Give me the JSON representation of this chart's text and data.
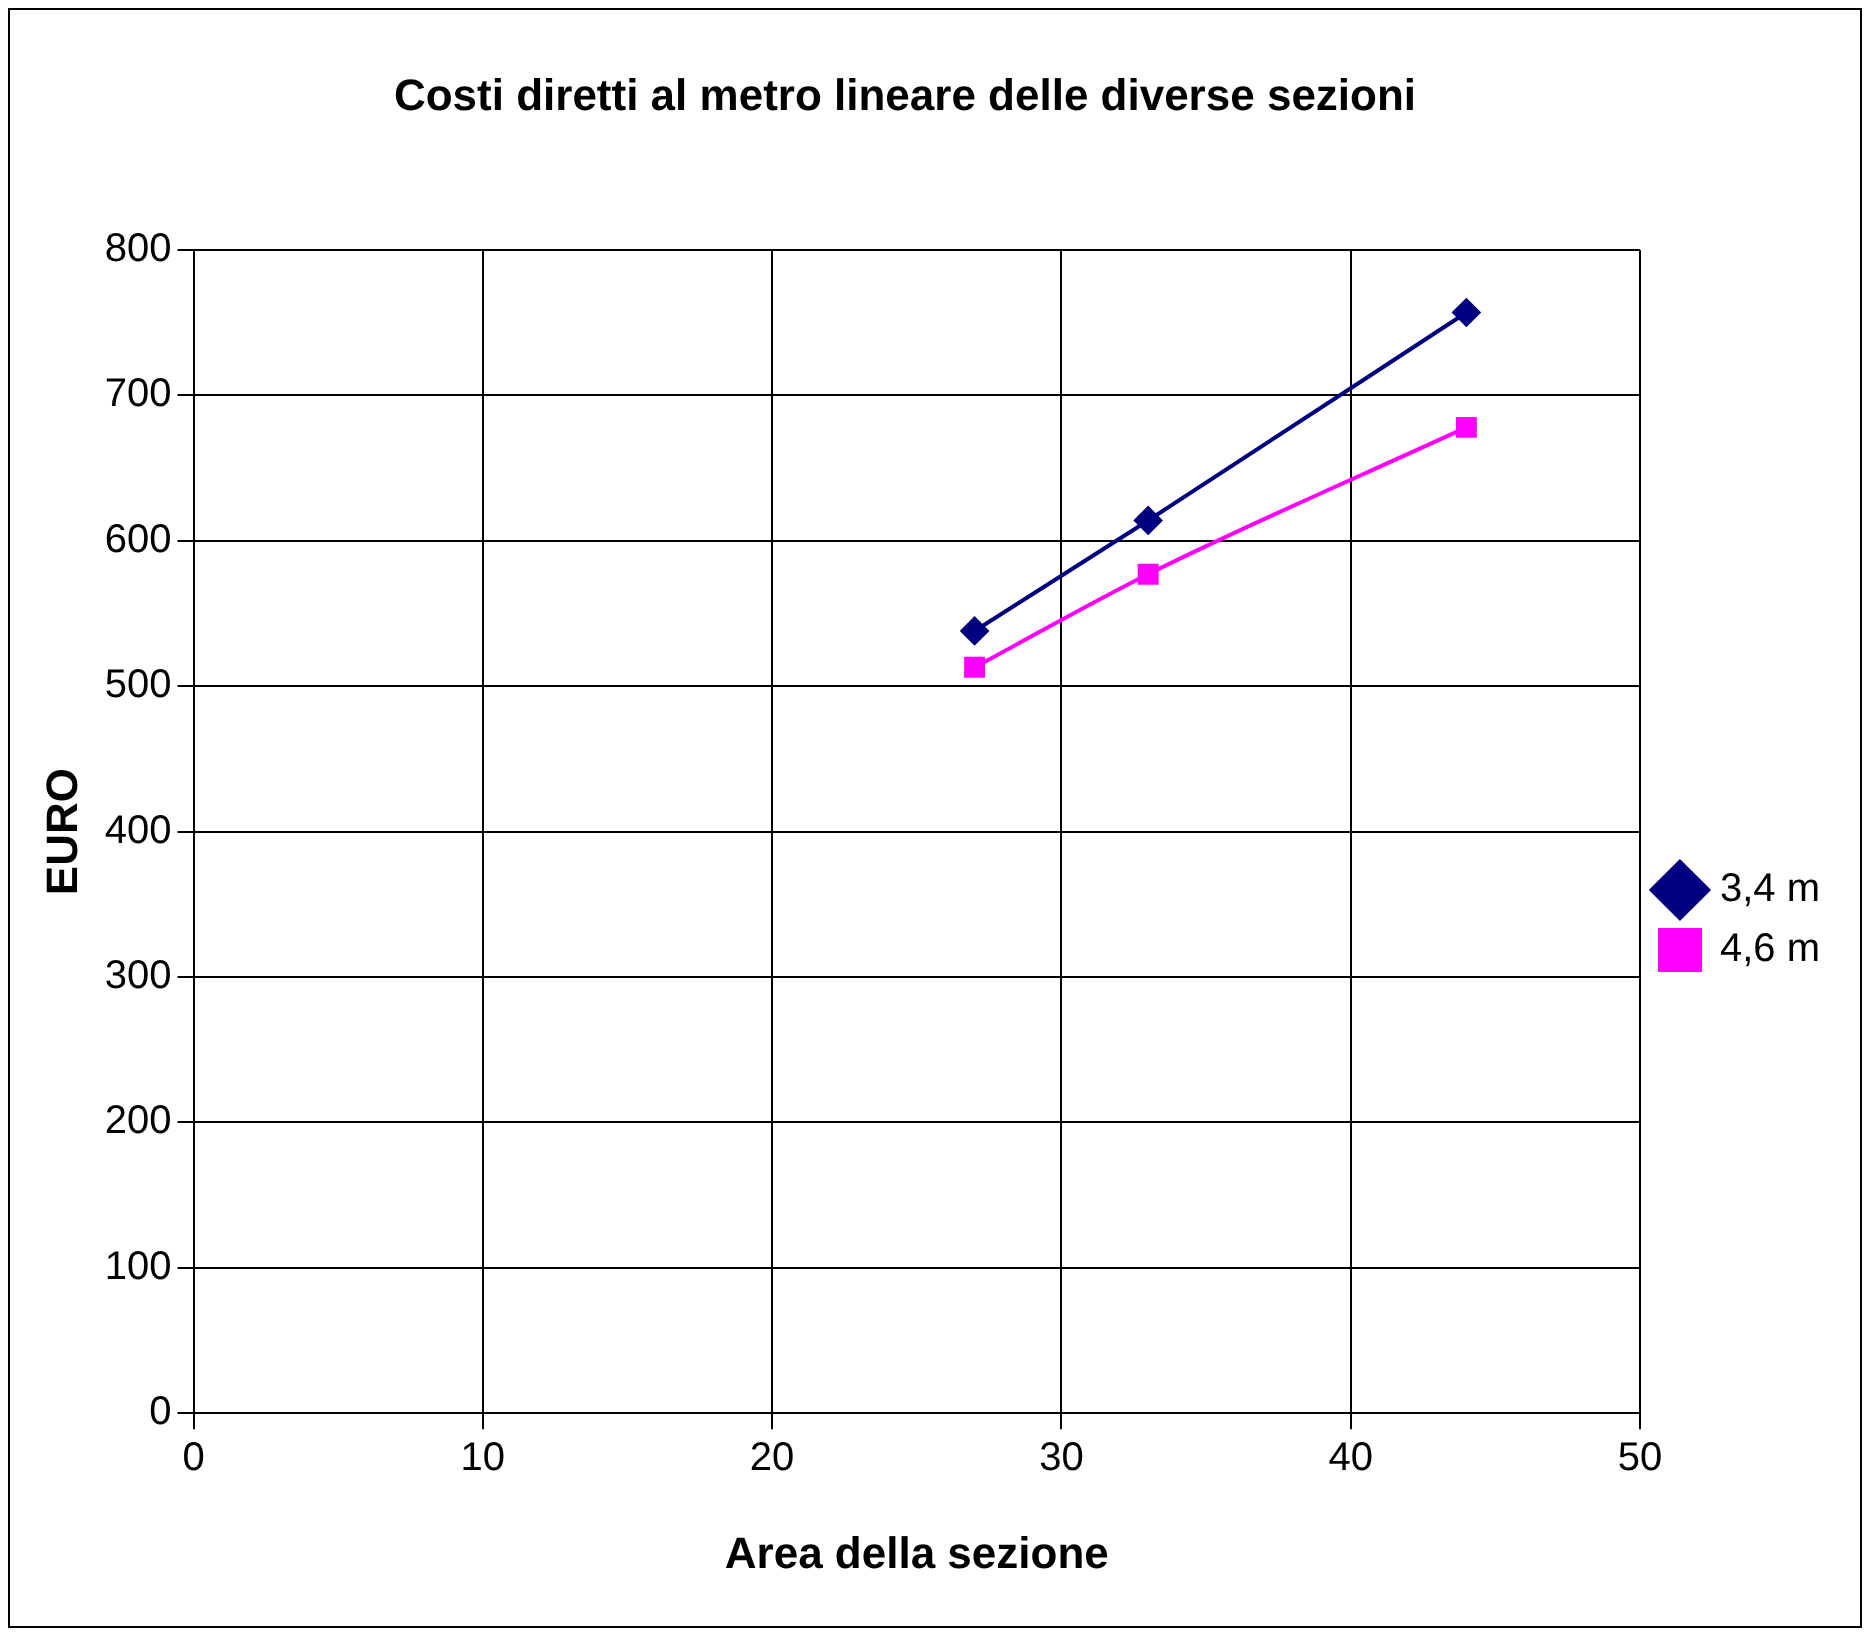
{
  "chart_data": {
    "type": "line",
    "title": "Costi diretti al metro lineare delle diverse sezioni",
    "xlabel": "Area della sezione",
    "ylabel": "EURO",
    "x": [
      27,
      33,
      44
    ],
    "series": [
      {
        "name": "3,4 m",
        "color": "#000080",
        "marker": "diamond",
        "values": [
          538,
          614,
          757
        ]
      },
      {
        "name": "4,6 m",
        "color": "#ff00ff",
        "marker": "square",
        "values": [
          513,
          577,
          678
        ]
      }
    ],
    "xlim": [
      0,
      50
    ],
    "xticks": [
      0,
      10,
      20,
      30,
      40,
      50
    ],
    "ylim": [
      0,
      800
    ],
    "yticks": [
      0,
      100,
      200,
      300,
      400,
      500,
      600,
      700,
      800
    ],
    "grid": true,
    "legend": "right",
    "line_style": "solid"
  }
}
